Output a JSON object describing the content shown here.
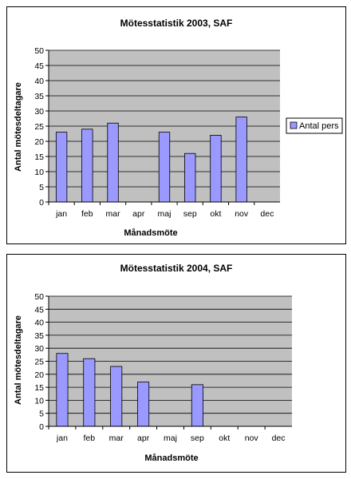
{
  "chart_data": [
    {
      "type": "bar",
      "title": "Mötesstatistik 2003, SAF",
      "xlabel": "Månadsmöte",
      "ylabel": "Antal mötesdeltagare",
      "categories": [
        "jan",
        "feb",
        "mar",
        "apr",
        "maj",
        "sep",
        "okt",
        "nov",
        "dec"
      ],
      "series": [
        {
          "name": "Antal pers",
          "values": [
            23,
            24,
            26,
            null,
            23,
            16,
            22,
            28,
            null
          ]
        }
      ],
      "ylim": [
        0,
        50
      ],
      "yticks": [
        0,
        5,
        10,
        15,
        20,
        25,
        30,
        35,
        40,
        45,
        50
      ],
      "grid": true,
      "legend": "right",
      "plot_bg": "#c0c0c0",
      "bar_color": "#9999ff"
    },
    {
      "type": "bar",
      "title": "Mötesstatistik 2004, SAF",
      "xlabel": "Månadsmöte",
      "ylabel": "Antal mötesdeltagare",
      "categories": [
        "jan",
        "feb",
        "mar",
        "apr",
        "maj",
        "sep",
        "okt",
        "nov",
        "dec"
      ],
      "series": [
        {
          "values": [
            28,
            26,
            23,
            17,
            null,
            16,
            null,
            null,
            null
          ]
        }
      ],
      "ylim": [
        0,
        50
      ],
      "yticks": [
        0,
        5,
        10,
        15,
        20,
        25,
        30,
        35,
        40,
        45,
        50
      ],
      "grid": true,
      "plot_bg": "#c0c0c0",
      "bar_color": "#9999ff"
    }
  ]
}
